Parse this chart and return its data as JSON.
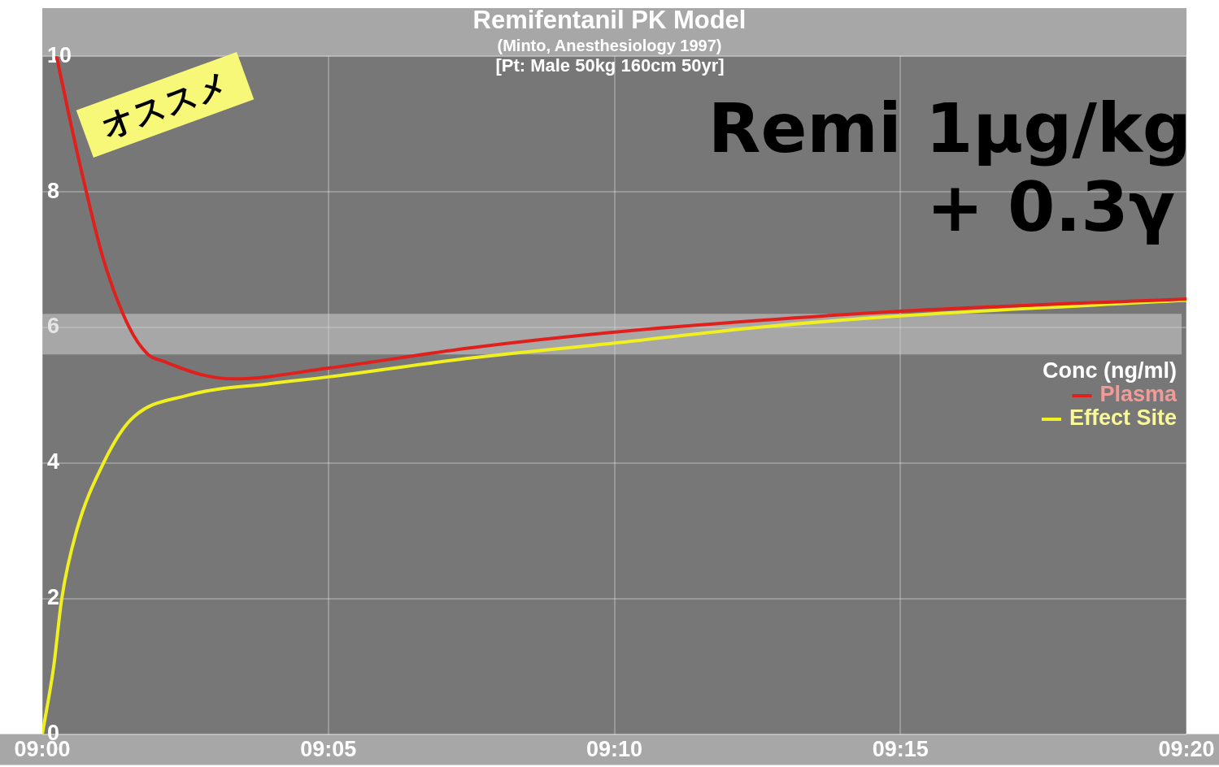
{
  "chart_data": {
    "type": "line",
    "title": "Remifentanil PK Model",
    "subtitle": "(Minto, Anesthesiology 1997)",
    "annotations": [
      "[Pt: Male 50kg 160cm 50yr]",
      "オススメ",
      "Remi 1μg/kg",
      "+ 0.3γ"
    ],
    "legend_title": "Conc (ng/ml)",
    "legend": "right",
    "grid": true,
    "marker": "none",
    "line_style": "solid",
    "xlim": [
      9,
      9.33333
    ],
    "xticks": [
      {
        "value": 9,
        "label": "09:00"
      },
      {
        "value": 9.08333,
        "label": "09:05"
      },
      {
        "value": 9.16667,
        "label": "09:10"
      },
      {
        "value": 9.25,
        "label": "09:15"
      },
      {
        "value": 9.33333,
        "label": "09:20"
      }
    ],
    "ylim": [
      0,
      10
    ],
    "yticks": [
      0,
      2,
      4,
      6,
      8,
      10
    ],
    "bands": [
      {
        "axis": "y",
        "from": 5.6,
        "to": 6.2,
        "color": "#d0d0d0"
      }
    ],
    "series": [
      {
        "name": "Plasma",
        "color": "#e0201c",
        "x": [
          9.00417,
          9.00833,
          9.01283,
          9.01783,
          9.02533,
          9.03083,
          9.03533,
          9.04667,
          9.05583,
          9.08333,
          9.125,
          9.16667,
          9.20833,
          9.25,
          9.33333
        ],
        "values": [
          10,
          9,
          8,
          7,
          6,
          5.6,
          5.5,
          5.3,
          5.24,
          5.4,
          5.7,
          5.93,
          6.1,
          6.24,
          6.42
        ]
      },
      {
        "name": "Effect Site",
        "color": "#f0f020",
        "x": [
          9,
          9.00333,
          9.00567,
          9.01,
          9.01783,
          9.02583,
          9.0425,
          9.06617,
          9.08333,
          9.125,
          9.16667,
          9.20833,
          9.25,
          9.33333
        ],
        "values": [
          0,
          1,
          2,
          3,
          4,
          4.64,
          5.0,
          5.17,
          5.27,
          5.55,
          5.77,
          6.0,
          6.17,
          6.4
        ]
      }
    ]
  }
}
